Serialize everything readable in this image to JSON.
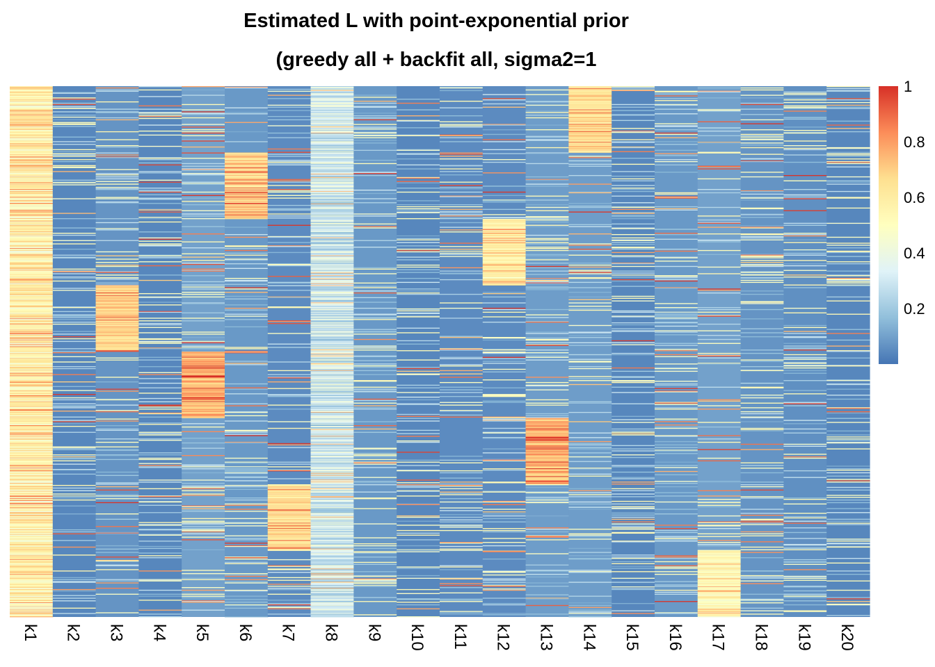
{
  "chart_data": {
    "type": "heatmap",
    "title": "Estimated L with point-exponential prior",
    "subtitle": "(greedy all + backfit all, sigma2=1",
    "columns": [
      "k1",
      "k2",
      "k3",
      "k4",
      "k5",
      "k6",
      "k7",
      "k8",
      "k9",
      "k10",
      "k11",
      "k12",
      "k13",
      "k14",
      "k15",
      "k16",
      "k17",
      "k18",
      "k19",
      "k20"
    ],
    "n_rows": 800,
    "value_range": [
      0,
      1
    ],
    "colorbar": {
      "ticks": [
        0.2,
        0.4,
        0.6,
        0.8,
        1
      ],
      "tick_labels": [
        "0.2",
        "0.4",
        "0.6",
        "0.8",
        "1"
      ],
      "colors": [
        "#4575b4",
        "#91bfdb",
        "#e0f3f8",
        "#ffffbf",
        "#fee090",
        "#fc8d59",
        "#d73027"
      ]
    },
    "column_baselines": [
      0.58,
      0.04,
      0.07,
      0.04,
      0.1,
      0.08,
      0.05,
      0.3,
      0.08,
      0.04,
      0.05,
      0.05,
      0.09,
      0.09,
      0.04,
      0.08,
      0.1,
      0.07,
      0.06,
      0.04
    ],
    "blocks": [
      {
        "column": "k14",
        "row_start": 0,
        "row_end": 100,
        "value": 0.65
      },
      {
        "column": "k6",
        "row_start": 100,
        "row_end": 200,
        "value": 0.68
      },
      {
        "column": "k12",
        "row_start": 200,
        "row_end": 300,
        "value": 0.58
      },
      {
        "column": "k3",
        "row_start": 300,
        "row_end": 400,
        "value": 0.68
      },
      {
        "column": "k5",
        "row_start": 400,
        "row_end": 500,
        "value": 0.75
      },
      {
        "column": "k13",
        "row_start": 500,
        "row_end": 600,
        "value": 0.76
      },
      {
        "column": "k7",
        "row_start": 600,
        "row_end": 700,
        "value": 0.64
      },
      {
        "column": "k17",
        "row_start": 700,
        "row_end": 800,
        "value": 0.53
      }
    ]
  }
}
